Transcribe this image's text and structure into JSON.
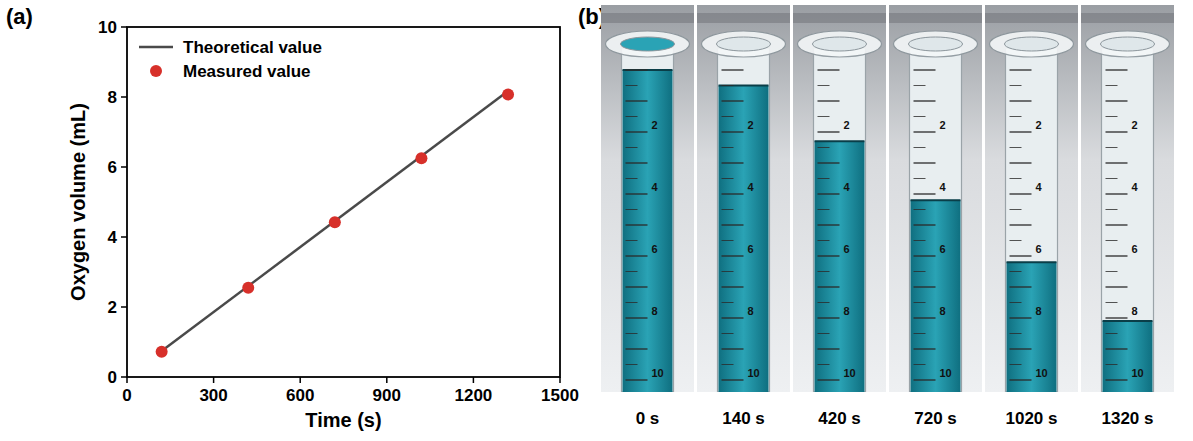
{
  "chart_data": {
    "type": "line",
    "panel_label": "(a)",
    "x_label": "Time (s)",
    "y_label": "Oxygen volume (mL)",
    "xlim": [
      0,
      1500
    ],
    "xticks": [
      0,
      300,
      600,
      900,
      1200,
      1500
    ],
    "ylim": [
      0,
      10
    ],
    "yticks": [
      0,
      2,
      4,
      6,
      8,
      10
    ],
    "legend": "top-left",
    "series": [
      {
        "name": "Theoretical value",
        "type": "line",
        "color": "#4a4a4a",
        "line_style": "solid",
        "x": [
          120,
          1320
        ],
        "values": [
          0.74,
          8.17
        ]
      },
      {
        "name": "Measured value",
        "type": "scatter",
        "color": "#d7302a",
        "marker": "circle",
        "x": [
          120,
          420,
          720,
          1020,
          1320
        ],
        "values": [
          0.72,
          2.55,
          4.42,
          6.25,
          8.07
        ]
      }
    ]
  },
  "photo_panel": {
    "panel_label": "(b)",
    "scale_labels": [
      2,
      4,
      6,
      8,
      10
    ],
    "photos": [
      {
        "label": "0 s",
        "level": 0
      },
      {
        "label": "140 s",
        "level": 0.5
      },
      {
        "label": "420 s",
        "level": 2.3
      },
      {
        "label": "720 s",
        "level": 4.2
      },
      {
        "label": "1020 s",
        "level": 6.2
      },
      {
        "label": "1320 s",
        "level": 8.1
      }
    ]
  }
}
